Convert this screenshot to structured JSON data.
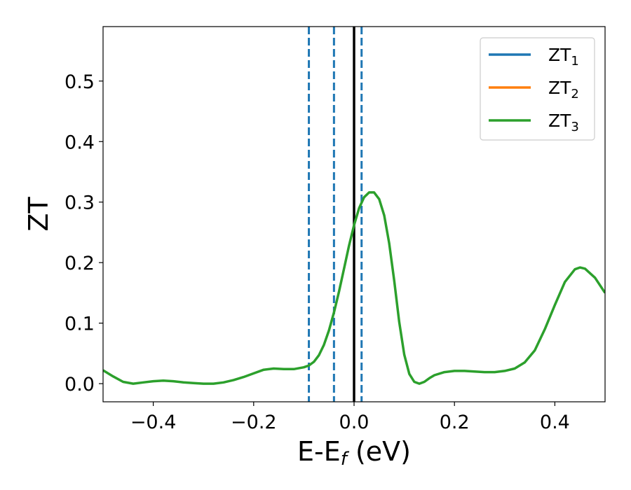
{
  "chart_data": {
    "type": "line",
    "xlabel": "E-E",
    "xlabel_sub": "f",
    "xlabel_unit": " (eV)",
    "ylabel": "ZT",
    "xlim": [
      -0.5,
      0.5
    ],
    "ylim": [
      -0.03,
      0.59
    ],
    "xticks": [
      -0.4,
      -0.2,
      0.0,
      0.2,
      0.4
    ],
    "xtick_labels": [
      "−0.4",
      "−0.2",
      "0.0",
      "0.2",
      "0.4"
    ],
    "yticks": [
      0.0,
      0.1,
      0.2,
      0.3,
      0.4,
      0.5
    ],
    "ytick_labels": [
      "0.0",
      "0.1",
      "0.2",
      "0.3",
      "0.4",
      "0.5"
    ],
    "grid": false,
    "legend_position": "top-right",
    "series": [
      {
        "name": "ZT",
        "name_sub": "1",
        "color": "#1f77b4",
        "points": []
      },
      {
        "name": "ZT",
        "name_sub": "2",
        "color": "#ff7f0e",
        "points": []
      },
      {
        "name": "ZT",
        "name_sub": "3",
        "color": "#2ca02c",
        "points": [
          [
            -0.5,
            0.022
          ],
          [
            -0.48,
            0.012
          ],
          [
            -0.46,
            0.003
          ],
          [
            -0.44,
            0.0
          ],
          [
            -0.42,
            0.002
          ],
          [
            -0.4,
            0.004
          ],
          [
            -0.38,
            0.005
          ],
          [
            -0.36,
            0.004
          ],
          [
            -0.34,
            0.002
          ],
          [
            -0.32,
            0.001
          ],
          [
            -0.3,
            0.0
          ],
          [
            -0.28,
            0.0
          ],
          [
            -0.26,
            0.002
          ],
          [
            -0.24,
            0.006
          ],
          [
            -0.22,
            0.011
          ],
          [
            -0.2,
            0.017
          ],
          [
            -0.18,
            0.023
          ],
          [
            -0.16,
            0.025
          ],
          [
            -0.14,
            0.024
          ],
          [
            -0.12,
            0.024
          ],
          [
            -0.1,
            0.027
          ],
          [
            -0.09,
            0.03
          ],
          [
            -0.08,
            0.036
          ],
          [
            -0.07,
            0.047
          ],
          [
            -0.06,
            0.064
          ],
          [
            -0.05,
            0.088
          ],
          [
            -0.04,
            0.118
          ],
          [
            -0.03,
            0.152
          ],
          [
            -0.02,
            0.19
          ],
          [
            -0.01,
            0.228
          ],
          [
            0.0,
            0.262
          ],
          [
            0.01,
            0.29
          ],
          [
            0.02,
            0.308
          ],
          [
            0.03,
            0.316
          ],
          [
            0.04,
            0.316
          ],
          [
            0.05,
            0.305
          ],
          [
            0.06,
            0.278
          ],
          [
            0.07,
            0.232
          ],
          [
            0.08,
            0.17
          ],
          [
            0.09,
            0.102
          ],
          [
            0.1,
            0.048
          ],
          [
            0.11,
            0.016
          ],
          [
            0.12,
            0.003
          ],
          [
            0.13,
            0.0
          ],
          [
            0.14,
            0.003
          ],
          [
            0.15,
            0.009
          ],
          [
            0.16,
            0.014
          ],
          [
            0.18,
            0.019
          ],
          [
            0.2,
            0.021
          ],
          [
            0.22,
            0.021
          ],
          [
            0.24,
            0.02
          ],
          [
            0.26,
            0.019
          ],
          [
            0.28,
            0.019
          ],
          [
            0.3,
            0.021
          ],
          [
            0.32,
            0.025
          ],
          [
            0.34,
            0.035
          ],
          [
            0.36,
            0.055
          ],
          [
            0.38,
            0.09
          ],
          [
            0.4,
            0.13
          ],
          [
            0.42,
            0.168
          ],
          [
            0.44,
            0.189
          ],
          [
            0.45,
            0.192
          ],
          [
            0.46,
            0.19
          ],
          [
            0.48,
            0.175
          ],
          [
            0.5,
            0.15
          ]
        ]
      }
    ],
    "vlines": [
      {
        "x": -0.09,
        "style": "dashed",
        "color": "#1f77b4"
      },
      {
        "x": -0.04,
        "style": "dashed",
        "color": "#1f77b4"
      },
      {
        "x": 0.0,
        "style": "solid",
        "color": "#000000"
      },
      {
        "x": 0.015,
        "style": "dashed",
        "color": "#1f77b4"
      }
    ]
  }
}
